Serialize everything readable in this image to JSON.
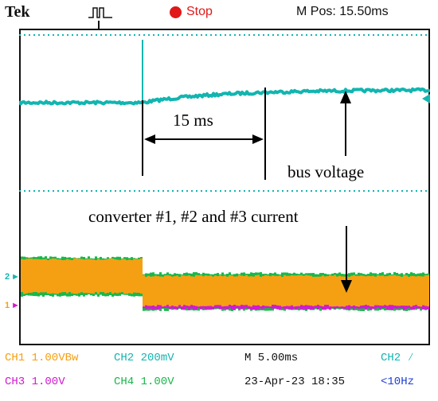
{
  "header": {
    "brand": "Tek",
    "status": "Stop",
    "position": "M Pos: 15.50ms"
  },
  "annotations": {
    "interval": "15 ms",
    "voltage_label": "bus voltage",
    "current_label": "converter #1,  #2 and #3 current"
  },
  "markers": {
    "ch2": "2",
    "ch1": "1"
  },
  "channels_row1": {
    "ch1": "CH1  1.00VBw",
    "ch2": "CH2  200mV",
    "timebase": "M 5.00ms",
    "trigger": "CH2 ∕"
  },
  "channels_row2": {
    "ch3": "CH3  1.00V",
    "ch4": "CH4  1.00V",
    "date": "23-Apr-23 18:35",
    "freq": "<10Hz"
  },
  "colors": {
    "ch1": "#f5a012",
    "ch2": "#12b5b0",
    "ch3": "#d11ad1",
    "ch4": "#18b84a",
    "stop": "#e01818",
    "time_color": "#1d3fd6"
  }
}
